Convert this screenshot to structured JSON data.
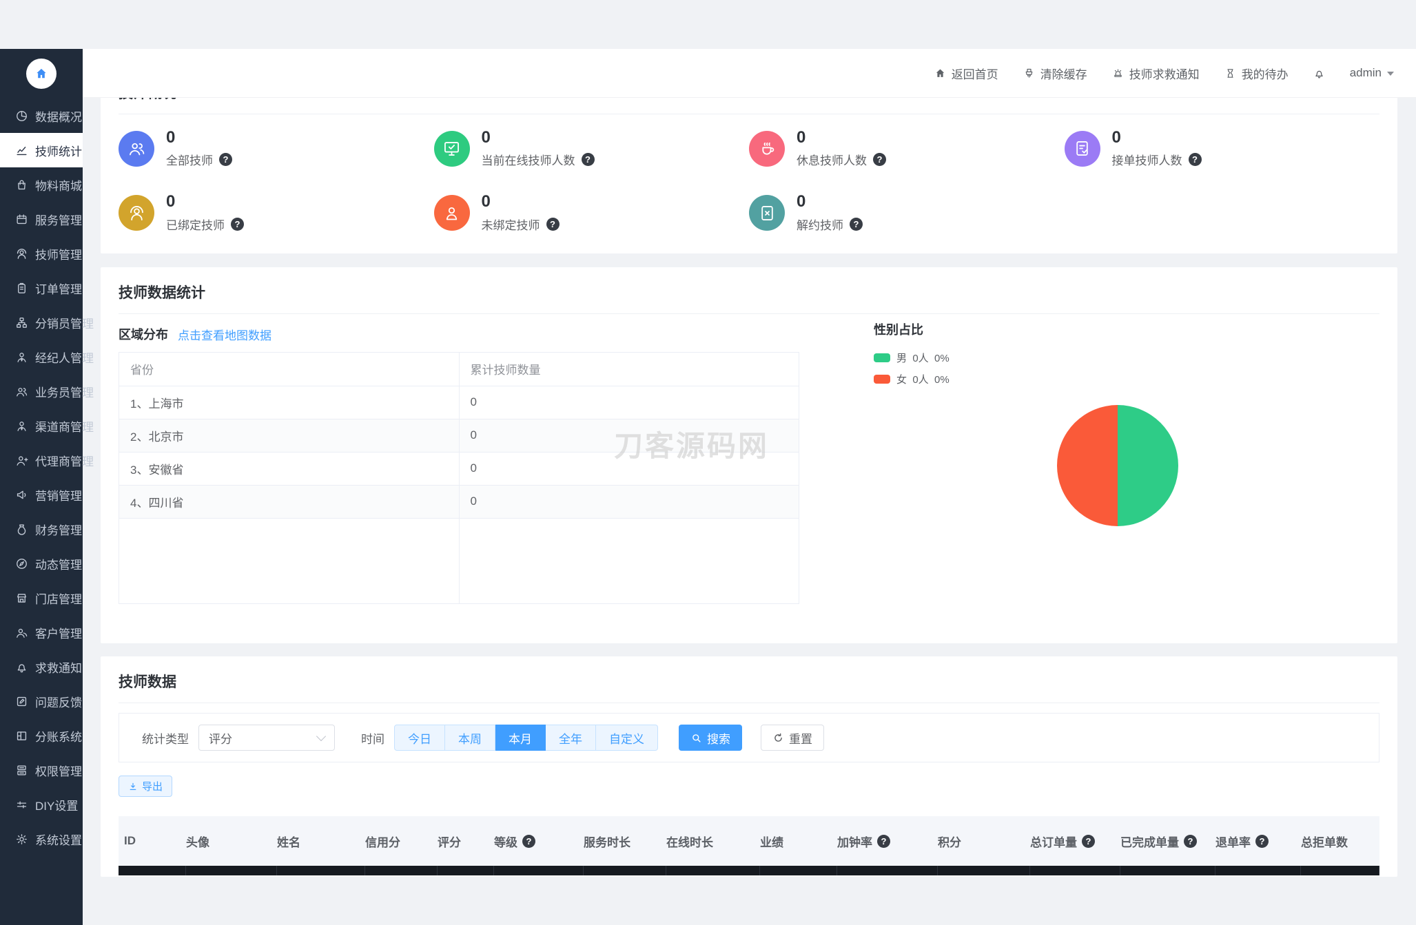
{
  "misc": {
    "help_glyph": "?"
  },
  "colors": {
    "accent": "#409eff",
    "sidebar_bg": "#202b3a",
    "page_bg": "#f0f2f5",
    "dark_strip": "#161a20"
  },
  "sidebar": {
    "items": [
      {
        "label": "数据概况",
        "icon": "pie",
        "active": false
      },
      {
        "label": "技师统计",
        "icon": "chart",
        "active": true
      },
      {
        "label": "物料商城",
        "icon": "bag",
        "active": false
      },
      {
        "label": "服务管理",
        "icon": "calendar",
        "active": false
      },
      {
        "label": "技师管理",
        "icon": "person-pin",
        "active": false
      },
      {
        "label": "订单管理",
        "icon": "clipboard",
        "active": false
      },
      {
        "label": "分销员管理",
        "icon": "org",
        "active": false
      },
      {
        "label": "经纪人管理",
        "icon": "person-tie",
        "active": false
      },
      {
        "label": "业务员管理",
        "icon": "people",
        "active": false
      },
      {
        "label": "渠道商管理",
        "icon": "person-tie",
        "active": false
      },
      {
        "label": "代理商管理",
        "icon": "person-plus",
        "active": false
      },
      {
        "label": "营销管理",
        "icon": "megaphone",
        "active": false
      },
      {
        "label": "财务管理",
        "icon": "pouch",
        "active": false
      },
      {
        "label": "动态管理",
        "icon": "compass",
        "active": false
      },
      {
        "label": "门店管理",
        "icon": "store",
        "active": false
      },
      {
        "label": "客户管理",
        "icon": "users",
        "active": false
      },
      {
        "label": "求救通知",
        "icon": "bell",
        "active": false
      },
      {
        "label": "问题反馈",
        "icon": "edit-square",
        "active": false
      },
      {
        "label": "分账系统",
        "icon": "split",
        "active": false
      },
      {
        "label": "权限管理",
        "icon": "layers",
        "active": false
      },
      {
        "label": "DIY设置",
        "icon": "diy",
        "active": false
      },
      {
        "label": "系统设置",
        "icon": "gear",
        "active": false
      }
    ]
  },
  "header": {
    "links": [
      {
        "label": "返回首页",
        "icon": "home"
      },
      {
        "label": "清除缓存",
        "icon": "brush"
      },
      {
        "label": "技师求救通知",
        "icon": "siren"
      },
      {
        "label": "我的待办",
        "icon": "hourglass"
      }
    ],
    "user": "admin"
  },
  "overview": {
    "title": "技师概况",
    "stats": [
      {
        "value": "0",
        "label": "全部技师",
        "icon": "people",
        "color": "#5b7bf0",
        "help": true
      },
      {
        "value": "0",
        "label": "当前在线技师人数",
        "icon": "monitor-check",
        "color": "#2ecb80",
        "help": true
      },
      {
        "value": "0",
        "label": "休息技师人数",
        "icon": "coffee",
        "color": "#f8697d",
        "help": true
      },
      {
        "value": "0",
        "label": "接单技师人数",
        "icon": "doc-check",
        "color": "#9b7bf5",
        "help": true
      },
      {
        "value": "0",
        "label": "已绑定技师",
        "icon": "person-pin",
        "color": "#d2a42c",
        "help": true
      },
      {
        "value": "0",
        "label": "未绑定技师",
        "icon": "person",
        "color": "#f9683f",
        "help": true
      },
      {
        "value": "0",
        "label": "解约技师",
        "icon": "doc-x",
        "color": "#52a1a1",
        "help": true
      }
    ]
  },
  "statistics": {
    "title": "技师数据统计",
    "region": {
      "heading": "区域分布",
      "link": "点击查看地图数据",
      "columns": [
        "省份",
        "累计技师数量"
      ],
      "rows": [
        [
          "1、上海市",
          "0"
        ],
        [
          "2、北京市",
          "0"
        ],
        [
          "3、安徽省",
          "0"
        ],
        [
          "4、四川省",
          "0"
        ]
      ]
    },
    "gender": {
      "heading": "性别占比",
      "legend": [
        {
          "label": "男",
          "count": "0人",
          "pct": "0%",
          "color": "#2ecc87"
        },
        {
          "label": "女",
          "count": "0人",
          "pct": "0%",
          "color": "#fa5a39"
        }
      ]
    }
  },
  "watermark": "刀客源码网",
  "chart_data": {
    "type": "pie",
    "title": "性别占比",
    "labels": [
      "男",
      "女"
    ],
    "counts": [
      "0人",
      "0人"
    ],
    "values": [
      0,
      0
    ],
    "percentages": [
      "0%",
      "0%"
    ],
    "colors": [
      "#2ecc87",
      "#fa5a39"
    ],
    "render_split": [
      50,
      50
    ],
    "legend_position": "top-left"
  },
  "tech_data": {
    "title": "技师数据",
    "filter": {
      "type_label": "统计类型",
      "type_value": "评分",
      "time_label": "时间",
      "time_options": [
        "今日",
        "本周",
        "本月",
        "全年",
        "自定义"
      ],
      "time_active": "本月",
      "search": "搜索",
      "reset": "重置"
    },
    "export": "导出",
    "columns": [
      {
        "label": "ID",
        "help": false
      },
      {
        "label": "头像",
        "help": false
      },
      {
        "label": "姓名",
        "help": false
      },
      {
        "label": "信用分",
        "help": false
      },
      {
        "label": "评分",
        "help": false
      },
      {
        "label": "等级",
        "help": true
      },
      {
        "label": "服务时长",
        "help": false
      },
      {
        "label": "在线时长",
        "help": false
      },
      {
        "label": "业绩",
        "help": false
      },
      {
        "label": "加钟率",
        "help": true
      },
      {
        "label": "积分",
        "help": false
      },
      {
        "label": "总订单量",
        "help": true
      },
      {
        "label": "已完成单量",
        "help": true
      },
      {
        "label": "退单率",
        "help": true
      },
      {
        "label": "总拒单数",
        "help": false
      }
    ]
  }
}
